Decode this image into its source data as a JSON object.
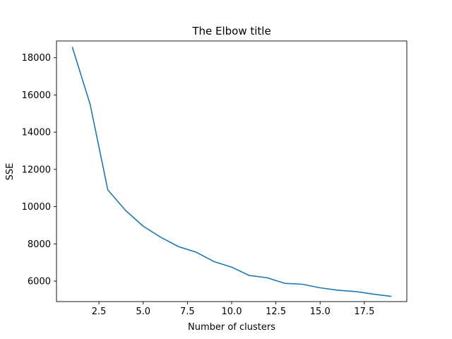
{
  "chart_data": {
    "type": "line",
    "title": "The Elbow title",
    "xlabel": "Number of clusters",
    "ylabel": "SSE",
    "xlim": [
      0.1,
      19.9
    ],
    "ylim": [
      4900,
      18900
    ],
    "xticks": [
      2.5,
      5.0,
      7.5,
      10.0,
      12.5,
      15.0,
      17.5
    ],
    "xtick_labels": [
      "2.5",
      "5.0",
      "7.5",
      "10.0",
      "12.5",
      "15.0",
      "17.5"
    ],
    "yticks": [
      6000,
      8000,
      10000,
      12000,
      14000,
      16000,
      18000
    ],
    "ytick_labels": [
      "6000",
      "8000",
      "10000",
      "12000",
      "14000",
      "16000",
      "18000"
    ],
    "grid": false,
    "line_color": "#1f77b4",
    "series": [
      {
        "x": [
          1,
          2,
          3,
          4,
          5,
          6,
          7,
          8,
          9,
          10,
          11,
          12,
          13,
          14,
          15,
          16,
          17,
          18,
          19
        ],
        "values": [
          18550,
          15500,
          10900,
          9800,
          8950,
          8350,
          7850,
          7550,
          7050,
          6750,
          6300,
          6180,
          5880,
          5830,
          5640,
          5510,
          5440,
          5300,
          5180
        ]
      }
    ]
  }
}
